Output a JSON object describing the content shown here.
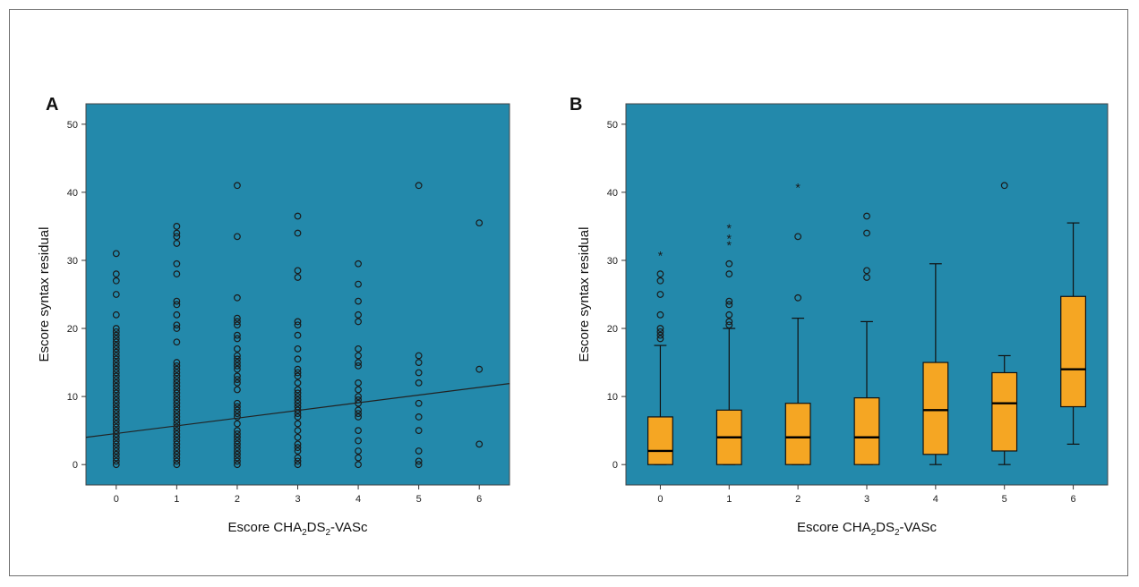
{
  "figure": {
    "colors": {
      "plot_bg": "#2389ab",
      "box_fill": "#f5a623",
      "marker": "#1a1a1a"
    }
  },
  "chart_data": [
    {
      "panel": "A",
      "type": "scatter",
      "title": "",
      "xlabel": {
        "pre": "Escore CHA",
        "s1": "2",
        "mid": "DS",
        "s2": "2",
        "post": "-VASc"
      },
      "ylabel": "Escore syntax residual",
      "xlim": [
        -0.5,
        6.5
      ],
      "ylim": [
        -3,
        53
      ],
      "xticks": [
        "0",
        "1",
        "2",
        "3",
        "4",
        "5",
        "6"
      ],
      "yticks": [
        "0",
        "10",
        "20",
        "30",
        "40",
        "50"
      ],
      "grid": false,
      "legend": "none",
      "series": [
        {
          "x": 0,
          "y": [
            0,
            0.5,
            1,
            1.5,
            2,
            2.5,
            3,
            3.5,
            4,
            4.5,
            5,
            5.5,
            6,
            6.5,
            7,
            7.5,
            8,
            8.5,
            9,
            9.5,
            10,
            10.5,
            11,
            11.5,
            12,
            12.5,
            13,
            13.5,
            14,
            14.5,
            15,
            15.5,
            16,
            16.5,
            17,
            17.5,
            18,
            18.5,
            19,
            19.5,
            20,
            22,
            25,
            27,
            28,
            31
          ]
        },
        {
          "x": 1,
          "y": [
            0,
            0.5,
            1,
            1.5,
            2,
            2.5,
            3,
            3.5,
            4,
            4.5,
            5,
            5.5,
            6,
            6.5,
            7,
            7.5,
            8,
            8.5,
            9,
            9.5,
            10,
            10.5,
            11,
            11.5,
            12,
            12.5,
            13,
            13.5,
            14,
            14.5,
            15,
            18,
            20,
            20.5,
            22,
            23.5,
            24,
            28,
            29.5,
            32.5,
            33.5,
            34,
            35
          ]
        },
        {
          "x": 2,
          "y": [
            0,
            0.5,
            1,
            1.5,
            2,
            2.5,
            3,
            3.5,
            4,
            4.5,
            5,
            6,
            7,
            7.5,
            8,
            8.5,
            9,
            11,
            12,
            12.5,
            13,
            14,
            14.5,
            15,
            15.5,
            16,
            17,
            18.5,
            19,
            20.5,
            21,
            21.5,
            24.5,
            33.5,
            41
          ]
        },
        {
          "x": 3,
          "y": [
            0,
            0.5,
            1,
            2,
            2.5,
            3,
            4,
            5,
            6,
            7,
            7.5,
            8,
            8.5,
            9,
            9.5,
            10,
            10.5,
            11,
            12,
            13,
            13.5,
            14,
            15.5,
            17,
            19,
            20.5,
            21,
            27.5,
            28.5,
            34,
            36.5
          ]
        },
        {
          "x": 4,
          "y": [
            0,
            1,
            2,
            3.5,
            5,
            7,
            7.5,
            8,
            9,
            9.5,
            10,
            11,
            12,
            14.5,
            15,
            16,
            17,
            21,
            22,
            24,
            26.5,
            29.5
          ]
        },
        {
          "x": 5,
          "y": [
            0,
            0.5,
            2,
            5,
            7,
            9,
            12,
            13.5,
            15,
            16,
            41
          ]
        },
        {
          "x": 6,
          "y": [
            3,
            14,
            35.5
          ]
        }
      ],
      "fit_line": {
        "x": [
          -0.5,
          6.5
        ],
        "y": [
          4,
          11.9
        ]
      }
    },
    {
      "panel": "B",
      "type": "box",
      "title": "",
      "xlabel": {
        "pre": "Escore CHA",
        "s1": "2",
        "mid": "DS",
        "s2": "2",
        "post": "-VASc"
      },
      "ylabel": "Escore syntax residual",
      "xlim": [
        -0.5,
        6.5
      ],
      "ylim": [
        -3,
        53
      ],
      "categories": [
        "0",
        "1",
        "2",
        "3",
        "4",
        "5",
        "6"
      ],
      "yticks": [
        "0",
        "10",
        "20",
        "30",
        "40",
        "50"
      ],
      "grid": false,
      "legend": "none",
      "boxes": [
        {
          "category": "0",
          "min": 0,
          "q1": 0,
          "median": 2,
          "q3": 7,
          "max": 17.5,
          "outliers": [
            18.5,
            19,
            19.5,
            20,
            22,
            25,
            27,
            28
          ],
          "extremes": [
            31
          ]
        },
        {
          "category": "1",
          "min": 0,
          "q1": 0,
          "median": 4,
          "q3": 8,
          "max": 20,
          "outliers": [
            20.5,
            21,
            22,
            23.5,
            24,
            28,
            29.5
          ],
          "extremes": [
            32.5,
            33.5,
            35
          ]
        },
        {
          "category": "2",
          "min": 0,
          "q1": 0,
          "median": 4,
          "q3": 9,
          "max": 21.5,
          "outliers": [
            24.5,
            33.5
          ],
          "extremes": [
            41
          ]
        },
        {
          "category": "3",
          "min": 0,
          "q1": 0,
          "median": 4,
          "q3": 9.8,
          "max": 21,
          "outliers": [
            27.5,
            28.5,
            34,
            36.5
          ],
          "extremes": []
        },
        {
          "category": "4",
          "min": 0,
          "q1": 1.5,
          "median": 8,
          "q3": 15,
          "max": 29.5,
          "outliers": [],
          "extremes": []
        },
        {
          "category": "5",
          "min": 0,
          "q1": 2,
          "median": 9,
          "q3": 13.5,
          "max": 16,
          "outliers": [
            41
          ],
          "extremes": []
        },
        {
          "category": "6",
          "min": 3,
          "q1": 8.5,
          "median": 14,
          "q3": 24.7,
          "max": 35.5,
          "outliers": [],
          "extremes": []
        }
      ]
    }
  ]
}
